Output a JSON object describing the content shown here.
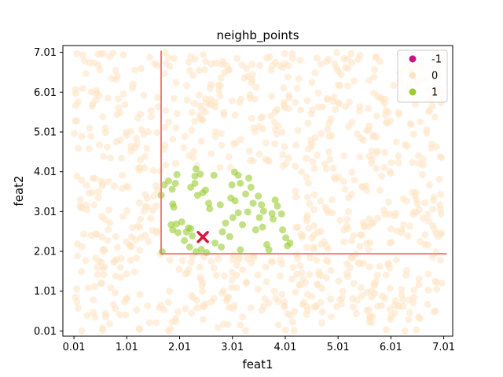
{
  "chart_data": {
    "type": "scatter",
    "title": "neighb_points",
    "xlabel": "feat1",
    "ylabel": "feat2",
    "xlim": [
      -0.2,
      7.18
    ],
    "ylim": [
      -0.12,
      7.18
    ],
    "xticks": [
      0.01,
      1.01,
      2.01,
      3.01,
      4.01,
      5.01,
      6.01,
      7.01
    ],
    "yticks": [
      0.01,
      1.01,
      2.01,
      3.01,
      4.01,
      5.01,
      6.01,
      7.01
    ],
    "xtick_labels": [
      "0.01",
      "1.01",
      "2.01",
      "3.01",
      "4.01",
      "5.01",
      "6.01",
      "7.01"
    ],
    "ytick_labels": [
      "0.01",
      "1.01",
      "2.01",
      "3.01",
      "4.01",
      "5.01",
      "6.01",
      "7.01"
    ],
    "legend": {
      "position": "top-right",
      "entries": [
        {
          "label": "-1",
          "color": "#c71585"
        },
        {
          "label": "0",
          "color": "#ffe4c4"
        },
        {
          "label": "1",
          "color": "#9acd32"
        }
      ]
    },
    "series": [
      {
        "name": "0",
        "color": "#ffe4c4",
        "n_points": 900,
        "x_range": [
          0.01,
          7.01
        ],
        "y_range": [
          0.01,
          7.01
        ],
        "excluded_region": {
          "x_min": 1.65,
          "y_min": 1.95,
          "x_max": 4.2,
          "y_max": 4.1
        }
      },
      {
        "name": "1",
        "color": "#9acd32",
        "points": [
          [
            1.66,
            3.42
          ],
          [
            1.72,
            3.68
          ],
          [
            1.8,
            3.78
          ],
          [
            1.87,
            3.57
          ],
          [
            1.93,
            3.72
          ],
          [
            1.96,
            3.94
          ],
          [
            1.88,
            3.2
          ],
          [
            1.9,
            3.12
          ],
          [
            1.85,
            2.68
          ],
          [
            1.88,
            2.55
          ],
          [
            1.95,
            2.7
          ],
          [
            2.05,
            2.75
          ],
          [
            1.98,
            2.48
          ],
          [
            2.14,
            2.5
          ],
          [
            2.18,
            2.6
          ],
          [
            2.22,
            2.58
          ],
          [
            2.2,
            2.12
          ],
          [
            2.25,
            2.4
          ],
          [
            2.22,
            3.62
          ],
          [
            2.3,
            3.72
          ],
          [
            2.35,
            3.42
          ],
          [
            2.3,
            3.9
          ],
          [
            2.32,
            4.08
          ],
          [
            2.4,
            3.95
          ],
          [
            2.45,
            3.48
          ],
          [
            2.5,
            3.55
          ],
          [
            2.56,
            3.22
          ],
          [
            2.58,
            3.08
          ],
          [
            2.66,
            3.92
          ],
          [
            2.68,
            2.22
          ],
          [
            2.8,
            2.12
          ],
          [
            2.52,
            1.98
          ],
          [
            2.32,
            2.0
          ],
          [
            1.68,
            2.0
          ],
          [
            2.78,
            3.18
          ],
          [
            2.82,
            2.5
          ],
          [
            2.88,
            2.72
          ],
          [
            2.96,
            2.38
          ],
          [
            2.98,
            3.35
          ],
          [
            3.0,
            3.68
          ],
          [
            3.05,
            4.0
          ],
          [
            3.06,
            3.28
          ],
          [
            3.02,
            2.86
          ],
          [
            3.12,
            3.92
          ],
          [
            3.16,
            3.72
          ],
          [
            3.2,
            2.68
          ],
          [
            3.26,
            3.45
          ],
          [
            3.3,
            3.0
          ],
          [
            3.16,
            2.05
          ],
          [
            3.32,
            3.85
          ],
          [
            3.36,
            3.62
          ],
          [
            3.4,
            3.22
          ],
          [
            3.5,
            3.4
          ],
          [
            3.56,
            3.18
          ],
          [
            3.52,
            2.86
          ],
          [
            3.58,
            2.62
          ],
          [
            3.6,
            3.02
          ],
          [
            3.66,
            2.18
          ],
          [
            3.7,
            2.05
          ],
          [
            3.76,
            2.96
          ],
          [
            3.82,
            3.3
          ],
          [
            3.86,
            3.15
          ],
          [
            3.78,
            2.82
          ],
          [
            3.94,
            2.95
          ],
          [
            3.96,
            2.55
          ],
          [
            4.02,
            2.35
          ],
          [
            4.1,
            2.22
          ],
          [
            4.05,
            2.15
          ],
          [
            3.12,
            2.98
          ],
          [
            2.1,
            2.28
          ],
          [
            2.42,
            2.06
          ],
          [
            3.45,
            2.55
          ]
        ]
      }
    ],
    "query_point": {
      "x": 2.45,
      "y": 2.37,
      "marker": "x",
      "color": "#dc143c"
    },
    "boundary_lines": {
      "color": "#f08070",
      "vertical": {
        "x": 1.66,
        "y_range": [
          1.95,
          7.05
        ]
      },
      "horizontal": {
        "y": 1.95,
        "x_range": [
          1.66,
          7.07
        ]
      }
    }
  }
}
